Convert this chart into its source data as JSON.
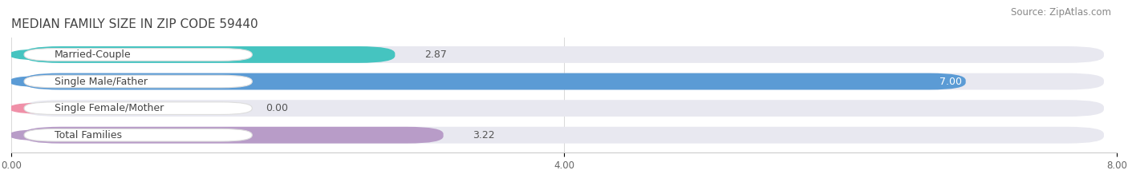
{
  "title": "MEDIAN FAMILY SIZE IN ZIP CODE 59440",
  "source": "Source: ZipAtlas.com",
  "categories": [
    "Married-Couple",
    "Single Male/Father",
    "Single Female/Mother",
    "Total Families"
  ],
  "values": [
    2.87,
    7.0,
    0.0,
    3.22
  ],
  "bar_colors": [
    "#45c4c0",
    "#5b9bd5",
    "#f090a8",
    "#b89cc8"
  ],
  "track_color": "#e8e8f0",
  "xlim": [
    0,
    8.0
  ],
  "xticks": [
    0.0,
    4.0,
    8.0
  ],
  "xtick_labels": [
    "0.00",
    "4.00",
    "8.00"
  ],
  "bar_height": 0.62,
  "label_fontsize": 9.0,
  "value_fontsize": 9.0,
  "title_fontsize": 11,
  "source_fontsize": 8.5,
  "background_color": "#ffffff",
  "label_box_color": "#ffffff"
}
